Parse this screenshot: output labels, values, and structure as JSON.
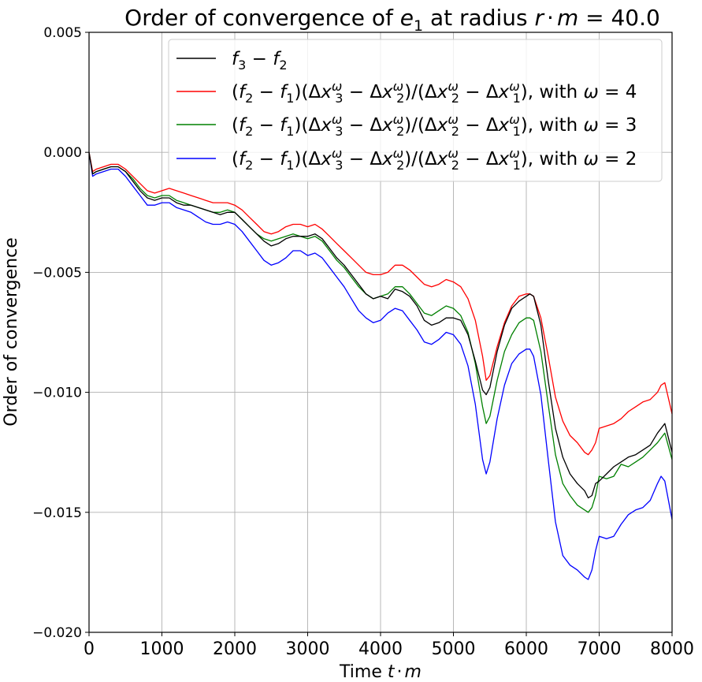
{
  "chart_data": {
    "type": "line",
    "title": "Order of convergence of e₁ at radius r·m = 40.0",
    "title_parts": {
      "prefix": "Order of convergence of ",
      "var": "e",
      "sub": "1",
      "middle": " at radius ",
      "r": "r",
      "dot": "·",
      "m": "m",
      "eq": " = 40.0"
    },
    "xlabel": "Time t·m",
    "xlabel_parts": {
      "text": "Time ",
      "t": "t",
      "dot": "·",
      "m": "m"
    },
    "ylabel": "Order of convergence",
    "xlim": [
      0,
      8000
    ],
    "ylim": [
      -0.02,
      0.005
    ],
    "xticks": [
      0,
      1000,
      2000,
      3000,
      4000,
      5000,
      6000,
      7000,
      8000
    ],
    "xtick_labels": [
      "0",
      "1000",
      "2000",
      "3000",
      "4000",
      "5000",
      "6000",
      "7000",
      "8000"
    ],
    "yticks": [
      0.005,
      0.0,
      -0.005,
      -0.01,
      -0.015,
      -0.02
    ],
    "ytick_labels": [
      "0.005",
      "0.000",
      "−0.005",
      "−0.010",
      "−0.015",
      "−0.020"
    ],
    "grid": true,
    "legend_position": "top-right",
    "x": [
      0,
      50,
      100,
      200,
      300,
      400,
      500,
      600,
      700,
      800,
      900,
      1000,
      1100,
      1200,
      1300,
      1400,
      1500,
      1600,
      1700,
      1800,
      1900,
      2000,
      2100,
      2200,
      2300,
      2400,
      2500,
      2600,
      2700,
      2800,
      2900,
      3000,
      3100,
      3200,
      3300,
      3400,
      3500,
      3600,
      3700,
      3800,
      3900,
      4000,
      4100,
      4200,
      4300,
      4400,
      4500,
      4600,
      4700,
      4800,
      4900,
      5000,
      5100,
      5200,
      5300,
      5400,
      5450,
      5500,
      5600,
      5700,
      5800,
      5900,
      6000,
      6050,
      6100,
      6200,
      6300,
      6400,
      6500,
      6600,
      6700,
      6800,
      6850,
      6900,
      6950,
      7000,
      7100,
      7200,
      7300,
      7400,
      7500,
      7600,
      7700,
      7800,
      7850,
      7900,
      8000
    ],
    "series": [
      {
        "name": "f₃ − f₂",
        "legend": {
          "a": "f",
          "a_sub": "3",
          "op": " − ",
          "b": "f",
          "b_sub": "2"
        },
        "color": "#000000",
        "values": [
          0,
          -0.0009,
          -0.0008,
          -0.0007,
          -0.0006,
          -0.0006,
          -0.0008,
          -0.0012,
          -0.0016,
          -0.0019,
          -0.002,
          -0.0019,
          -0.0019,
          -0.0021,
          -0.0022,
          -0.0022,
          -0.0023,
          -0.0024,
          -0.0025,
          -0.0026,
          -0.0025,
          -0.0025,
          -0.0028,
          -0.0031,
          -0.0034,
          -0.0037,
          -0.0039,
          -0.0038,
          -0.0036,
          -0.0035,
          -0.0035,
          -0.0035,
          -0.0034,
          -0.0036,
          -0.004,
          -0.0044,
          -0.0047,
          -0.0051,
          -0.0055,
          -0.0059,
          -0.0061,
          -0.006,
          -0.0061,
          -0.0057,
          -0.0058,
          -0.006,
          -0.0064,
          -0.007,
          -0.0072,
          -0.0071,
          -0.0069,
          -0.0069,
          -0.007,
          -0.0076,
          -0.0087,
          -0.0099,
          -0.0101,
          -0.0098,
          -0.0083,
          -0.0072,
          -0.0065,
          -0.0062,
          -0.006,
          -0.0059,
          -0.006,
          -0.0072,
          -0.0095,
          -0.0115,
          -0.0127,
          -0.0134,
          -0.0138,
          -0.0141,
          -0.0144,
          -0.0143,
          -0.0138,
          -0.0137,
          -0.0134,
          -0.0131,
          -0.0129,
          -0.0127,
          -0.0126,
          -0.0124,
          -0.0122,
          -0.0117,
          -0.0115,
          -0.0113,
          -0.0125
        ]
      },
      {
        "name": "(f₂ − f₁)(Δx₃^ω − Δx₂^ω)/(Δx₂^ω − Δx₁^ω), with ω = 4",
        "legend_omega": "4",
        "color": "#ff0000",
        "values": [
          0,
          -0.0008,
          -0.0007,
          -0.0006,
          -0.0005,
          -0.0005,
          -0.0007,
          -0.001,
          -0.0013,
          -0.0016,
          -0.0017,
          -0.0016,
          -0.0015,
          -0.0016,
          -0.0017,
          -0.0018,
          -0.0019,
          -0.002,
          -0.0021,
          -0.0021,
          -0.0021,
          -0.0022,
          -0.0024,
          -0.0027,
          -0.003,
          -0.0033,
          -0.0034,
          -0.0033,
          -0.0031,
          -0.003,
          -0.003,
          -0.0031,
          -0.003,
          -0.0032,
          -0.0035,
          -0.0038,
          -0.0041,
          -0.0044,
          -0.0047,
          -0.005,
          -0.0051,
          -0.0051,
          -0.005,
          -0.0047,
          -0.0047,
          -0.0049,
          -0.0052,
          -0.0055,
          -0.0056,
          -0.0055,
          -0.0053,
          -0.0054,
          -0.0056,
          -0.0061,
          -0.007,
          -0.0085,
          -0.0095,
          -0.0093,
          -0.0081,
          -0.0071,
          -0.0064,
          -0.006,
          -0.0059,
          -0.0059,
          -0.006,
          -0.0069,
          -0.0085,
          -0.0102,
          -0.0112,
          -0.0118,
          -0.0121,
          -0.0125,
          -0.0126,
          -0.0124,
          -0.0121,
          -0.0115,
          -0.0114,
          -0.0113,
          -0.0111,
          -0.0108,
          -0.0106,
          -0.0104,
          -0.0103,
          -0.01,
          -0.0097,
          -0.0096,
          -0.0109
        ]
      },
      {
        "name": "(f₂ − f₁)(Δx₃^ω − Δx₂^ω)/(Δx₂^ω − Δx₁^ω), with ω = 3",
        "legend_omega": "3",
        "color": "#008000",
        "values": [
          0,
          -0.0009,
          -0.0008,
          -0.0007,
          -0.0006,
          -0.0006,
          -0.0008,
          -0.0011,
          -0.0015,
          -0.0018,
          -0.0019,
          -0.0018,
          -0.0018,
          -0.002,
          -0.0021,
          -0.0022,
          -0.0023,
          -0.0024,
          -0.0025,
          -0.0025,
          -0.0024,
          -0.0025,
          -0.0028,
          -0.0031,
          -0.0034,
          -0.0036,
          -0.0037,
          -0.0036,
          -0.0035,
          -0.0034,
          -0.0035,
          -0.0036,
          -0.0035,
          -0.0037,
          -0.0041,
          -0.0045,
          -0.0048,
          -0.0052,
          -0.0056,
          -0.0059,
          -0.0061,
          -0.006,
          -0.0059,
          -0.0056,
          -0.0056,
          -0.0059,
          -0.0063,
          -0.0067,
          -0.0068,
          -0.0066,
          -0.0064,
          -0.0065,
          -0.0068,
          -0.0075,
          -0.0088,
          -0.0106,
          -0.0113,
          -0.011,
          -0.0095,
          -0.0083,
          -0.0076,
          -0.0071,
          -0.0069,
          -0.0069,
          -0.007,
          -0.0083,
          -0.0105,
          -0.0126,
          -0.0138,
          -0.0143,
          -0.0147,
          -0.0149,
          -0.015,
          -0.0148,
          -0.0143,
          -0.0135,
          -0.0136,
          -0.0135,
          -0.013,
          -0.0131,
          -0.0129,
          -0.0127,
          -0.0124,
          -0.0121,
          -0.0119,
          -0.0117,
          -0.0128
        ]
      },
      {
        "name": "(f₂ − f₁)(Δx₃^ω − Δx₂^ω)/(Δx₂^ω − Δx₁^ω), with ω = 2",
        "legend_omega": "2",
        "color": "#0000ff",
        "values": [
          0,
          -0.001,
          -0.0009,
          -0.0008,
          -0.0007,
          -0.0007,
          -0.001,
          -0.0014,
          -0.0018,
          -0.0022,
          -0.0022,
          -0.0021,
          -0.0021,
          -0.0023,
          -0.0024,
          -0.0025,
          -0.0027,
          -0.0029,
          -0.003,
          -0.003,
          -0.0029,
          -0.003,
          -0.0033,
          -0.0037,
          -0.0041,
          -0.0045,
          -0.0047,
          -0.0046,
          -0.0044,
          -0.0041,
          -0.0041,
          -0.0043,
          -0.0042,
          -0.0044,
          -0.0048,
          -0.0052,
          -0.0056,
          -0.0061,
          -0.0066,
          -0.0069,
          -0.0071,
          -0.007,
          -0.0067,
          -0.0065,
          -0.0066,
          -0.007,
          -0.0074,
          -0.0079,
          -0.008,
          -0.0078,
          -0.0075,
          -0.0076,
          -0.008,
          -0.0089,
          -0.0105,
          -0.0128,
          -0.0134,
          -0.0129,
          -0.0111,
          -0.0097,
          -0.0088,
          -0.0084,
          -0.0082,
          -0.0082,
          -0.0085,
          -0.0101,
          -0.0128,
          -0.0154,
          -0.0168,
          -0.0172,
          -0.0174,
          -0.0177,
          -0.0178,
          -0.0174,
          -0.0166,
          -0.016,
          -0.0161,
          -0.016,
          -0.0155,
          -0.0151,
          -0.0149,
          -0.0148,
          -0.0145,
          -0.0138,
          -0.0135,
          -0.0137,
          -0.0153
        ]
      }
    ],
    "legend_formula": {
      "open": "(",
      "f": "f",
      "s2": "2",
      "s1": "1",
      "s3": "3",
      "minus": " − ",
      "close": ")",
      "delta": "Δ",
      "x": "x",
      "omega": "ω",
      "slash": "/",
      "with": ", with ",
      "equals": " = "
    }
  }
}
